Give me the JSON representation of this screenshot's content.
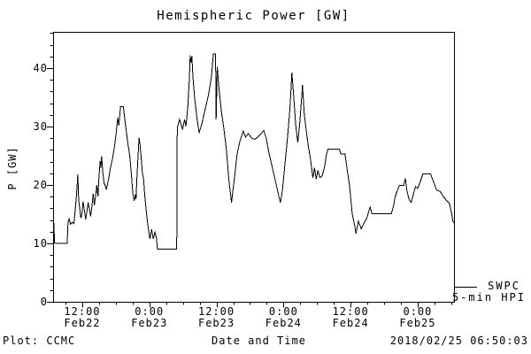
{
  "title": "Hemispheric Power [GW]",
  "footer": {
    "left": "Plot: CCMC",
    "center": "Date and Time",
    "right": "2018/02/25 06:50:03"
  },
  "legend": {
    "line1": "SWPC",
    "line2": "5-min HPI"
  },
  "colors": {
    "foreground": "#000000",
    "background": "#ffffff"
  },
  "chart_data": {
    "type": "line",
    "title": "Hemispheric Power [GW]",
    "xlabel": "Date and Time",
    "ylabel": "P [GW]",
    "x_unit": "hours since Feb22 00:00",
    "xlim": [
      6.78,
      78.5
    ],
    "ylim": [
      0,
      46.2
    ],
    "grid": false,
    "legend_position": "right-outside-bottom",
    "yticks_major": [
      0,
      10,
      20,
      30,
      40
    ],
    "ytick_minor_step": 2,
    "xtick_minor_step": 3,
    "xticks_major": [
      {
        "t": 12,
        "time": "12:00",
        "date": "Feb22"
      },
      {
        "t": 24,
        "time": "0:00",
        "date": "Feb23"
      },
      {
        "t": 36,
        "time": "12:00",
        "date": "Feb23"
      },
      {
        "t": 48,
        "time": "0:00",
        "date": "Feb24"
      },
      {
        "t": 60,
        "time": "12:00",
        "date": "Feb24"
      },
      {
        "t": 72,
        "time": "0:00",
        "date": "Feb25"
      }
    ],
    "series": [
      {
        "name": "SWPC 5-min HPI",
        "color": "#000000",
        "points": [
          [
            6.78,
            13.4
          ],
          [
            6.95,
            13.4
          ],
          [
            7.0,
            10.1
          ],
          [
            7.3,
            10.0
          ],
          [
            9.3,
            10.0
          ],
          [
            9.45,
            13.6
          ],
          [
            9.65,
            14.2
          ],
          [
            9.9,
            13.3
          ],
          [
            10.2,
            13.6
          ],
          [
            10.5,
            13.4
          ],
          [
            10.7,
            15.4
          ],
          [
            10.9,
            17.4
          ],
          [
            11.05,
            19.5
          ],
          [
            11.2,
            21.8
          ],
          [
            11.35,
            17.5
          ],
          [
            11.55,
            15.9
          ],
          [
            11.75,
            14.3
          ],
          [
            11.95,
            15.2
          ],
          [
            12.15,
            17.2
          ],
          [
            12.4,
            15.5
          ],
          [
            12.6,
            14.1
          ],
          [
            12.85,
            15.6
          ],
          [
            13.05,
            17.0
          ],
          [
            13.3,
            15.8
          ],
          [
            13.5,
            14.6
          ],
          [
            13.75,
            16.5
          ],
          [
            13.95,
            18.5
          ],
          [
            14.15,
            16.5
          ],
          [
            14.4,
            18.2
          ],
          [
            14.6,
            20.0
          ],
          [
            14.8,
            18.0
          ],
          [
            15.0,
            21.5
          ],
          [
            15.2,
            24.1
          ],
          [
            15.33,
            22.9
          ],
          [
            15.45,
            24.9
          ],
          [
            15.7,
            22.0
          ],
          [
            15.9,
            20.3
          ],
          [
            16.1,
            19.9
          ],
          [
            16.3,
            19.2
          ],
          [
            16.7,
            21.0
          ],
          [
            17.05,
            23.0
          ],
          [
            17.4,
            24.5
          ],
          [
            17.75,
            26.5
          ],
          [
            18.05,
            28.8
          ],
          [
            18.35,
            31.5
          ],
          [
            18.55,
            30.2
          ],
          [
            18.85,
            33.4
          ],
          [
            19.35,
            33.4
          ],
          [
            19.7,
            30.5
          ],
          [
            20.1,
            27.5
          ],
          [
            20.5,
            24.9
          ],
          [
            20.8,
            21.5
          ],
          [
            21.05,
            18.5
          ],
          [
            21.3,
            17.3
          ],
          [
            21.5,
            18.4
          ],
          [
            21.62,
            17.6
          ],
          [
            21.78,
            21.2
          ],
          [
            22.0,
            25.2
          ],
          [
            22.15,
            28.1
          ],
          [
            22.32,
            27.0
          ],
          [
            22.55,
            24.5
          ],
          [
            22.75,
            22.0
          ],
          [
            22.95,
            21.2
          ],
          [
            23.2,
            18.0
          ],
          [
            23.45,
            15.5
          ],
          [
            23.65,
            13.7
          ],
          [
            23.85,
            12.3
          ],
          [
            24.1,
            10.8
          ],
          [
            24.4,
            12.4
          ],
          [
            24.7,
            10.8
          ],
          [
            25.0,
            11.9
          ],
          [
            25.25,
            11.0
          ],
          [
            25.45,
            9.0
          ],
          [
            28.9,
            9.0
          ],
          [
            29.0,
            29.8
          ],
          [
            29.4,
            31.2
          ],
          [
            29.95,
            29.5
          ],
          [
            30.3,
            31.2
          ],
          [
            30.55,
            30.0
          ],
          [
            30.9,
            33.5
          ],
          [
            31.15,
            38.0
          ],
          [
            31.3,
            42.2
          ],
          [
            31.45,
            41.0
          ],
          [
            31.6,
            42.0
          ],
          [
            31.8,
            38.5
          ],
          [
            32.1,
            34.9
          ],
          [
            32.5,
            31.5
          ],
          [
            32.9,
            28.9
          ],
          [
            33.4,
            30.5
          ],
          [
            34.0,
            33.0
          ],
          [
            34.6,
            35.5
          ],
          [
            35.1,
            38.5
          ],
          [
            35.45,
            42.4
          ],
          [
            35.85,
            42.4
          ],
          [
            35.95,
            31.2
          ],
          [
            36.15,
            40.2
          ],
          [
            36.4,
            37.0
          ],
          [
            36.9,
            32.5
          ],
          [
            37.3,
            29.8
          ],
          [
            37.8,
            26.0
          ],
          [
            38.2,
            21.0
          ],
          [
            38.7,
            17.0
          ],
          [
            39.2,
            21.0
          ],
          [
            39.7,
            25.3
          ],
          [
            40.2,
            27.5
          ],
          [
            40.8,
            29.2
          ],
          [
            41.2,
            28.2
          ],
          [
            41.7,
            28.8
          ],
          [
            42.3,
            28.0
          ],
          [
            42.9,
            27.8
          ],
          [
            43.4,
            28.2
          ],
          [
            44.0,
            28.8
          ],
          [
            44.45,
            29.3
          ],
          [
            44.9,
            28.0
          ],
          [
            45.4,
            25.5
          ],
          [
            46.0,
            23.0
          ],
          [
            46.6,
            20.5
          ],
          [
            47.1,
            18.3
          ],
          [
            47.45,
            17.0
          ],
          [
            47.8,
            19.0
          ],
          [
            48.2,
            23.0
          ],
          [
            48.7,
            28.0
          ],
          [
            49.1,
            32.5
          ],
          [
            49.35,
            36.5
          ],
          [
            49.5,
            39.2
          ],
          [
            49.8,
            35.5
          ],
          [
            50.2,
            30.0
          ],
          [
            50.55,
            27.3
          ],
          [
            50.9,
            30.5
          ],
          [
            51.2,
            34.5
          ],
          [
            51.4,
            37.1
          ],
          [
            51.7,
            32.3
          ],
          [
            52.1,
            29.0
          ],
          [
            52.45,
            26.5
          ],
          [
            52.7,
            25.3
          ],
          [
            53.0,
            23.2
          ],
          [
            53.25,
            21.2
          ],
          [
            53.55,
            22.9
          ],
          [
            53.85,
            21.0
          ],
          [
            54.15,
            22.5
          ],
          [
            54.5,
            21.3
          ],
          [
            54.9,
            21.5
          ],
          [
            55.3,
            22.9
          ],
          [
            55.7,
            25.3
          ],
          [
            55.95,
            26.1
          ],
          [
            58.0,
            26.1
          ],
          [
            58.25,
            25.3
          ],
          [
            59.0,
            25.3
          ],
          [
            59.4,
            22.5
          ],
          [
            59.8,
            20.0
          ],
          [
            60.3,
            15.0
          ],
          [
            60.7,
            13.2
          ],
          [
            60.95,
            11.7
          ],
          [
            61.4,
            13.8
          ],
          [
            61.9,
            12.5
          ],
          [
            62.4,
            13.5
          ],
          [
            62.9,
            14.3
          ],
          [
            63.25,
            15.5
          ],
          [
            63.5,
            16.2
          ],
          [
            63.8,
            15.1
          ],
          [
            67.3,
            15.1
          ],
          [
            67.7,
            16.5
          ],
          [
            67.95,
            17.9
          ],
          [
            68.3,
            18.9
          ],
          [
            68.75,
            19.9
          ],
          [
            69.5,
            19.9
          ],
          [
            69.8,
            21.1
          ],
          [
            70.1,
            18.9
          ],
          [
            70.5,
            17.4
          ],
          [
            70.85,
            17.0
          ],
          [
            71.2,
            18.3
          ],
          [
            71.6,
            19.7
          ],
          [
            72.0,
            19.4
          ],
          [
            72.45,
            20.5
          ],
          [
            72.95,
            21.9
          ],
          [
            74.3,
            21.9
          ],
          [
            74.85,
            20.5
          ],
          [
            75.4,
            19.1
          ],
          [
            76.0,
            18.9
          ],
          [
            76.6,
            18.0
          ],
          [
            77.2,
            17.3
          ],
          [
            77.7,
            16.8
          ],
          [
            78.1,
            15.0
          ],
          [
            78.3,
            13.8
          ],
          [
            78.5,
            13.5
          ]
        ]
      }
    ]
  }
}
